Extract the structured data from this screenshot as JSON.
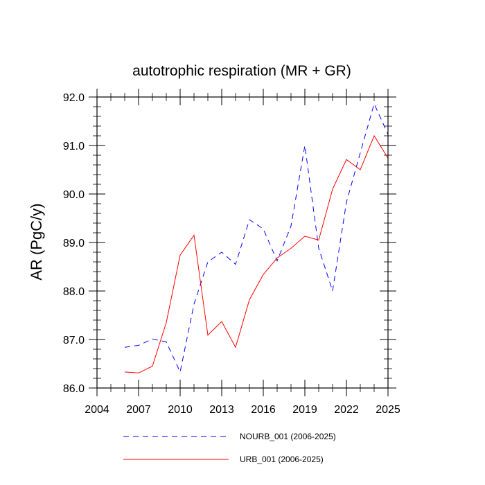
{
  "chart_data": {
    "type": "line",
    "title": "autotrophic respiration (MR + GR)",
    "xlabel": "",
    "ylabel": "AR  (PgC/y)",
    "xlim": [
      2004,
      2025
    ],
    "ylim": [
      86.0,
      92.0
    ],
    "x_ticks": [
      2004,
      2007,
      2010,
      2013,
      2016,
      2019,
      2022,
      2025
    ],
    "y_ticks": [
      86.0,
      87.0,
      88.0,
      89.0,
      90.0,
      91.0,
      92.0
    ],
    "y_tick_labels": [
      "86.0",
      "87.0",
      "88.0",
      "89.0",
      "90.0",
      "91.0",
      "92.0"
    ],
    "x": [
      2006,
      2007,
      2008,
      2009,
      2010,
      2011,
      2012,
      2013,
      2014,
      2015,
      2016,
      2017,
      2018,
      2019,
      2020,
      2021,
      2022,
      2023,
      2024,
      2025
    ],
    "series": [
      {
        "name": "NOURB_001 (2006-2025)",
        "color": "#0000ff",
        "style": "dashed",
        "values": [
          86.84,
          86.88,
          87.01,
          86.95,
          86.33,
          87.73,
          88.6,
          88.8,
          88.55,
          89.47,
          89.28,
          88.62,
          89.34,
          91.0,
          88.88,
          88.0,
          89.83,
          90.85,
          91.86,
          91.23
        ]
      },
      {
        "name": "URB_001 (2006-2025)",
        "color": "#ff0000",
        "style": "solid",
        "values": [
          86.33,
          86.31,
          86.45,
          87.35,
          88.74,
          89.15,
          87.09,
          87.37,
          86.84,
          87.82,
          88.34,
          88.68,
          88.88,
          89.13,
          89.05,
          90.1,
          90.71,
          90.5,
          91.2,
          90.74
        ]
      }
    ],
    "legend": "bottom"
  }
}
